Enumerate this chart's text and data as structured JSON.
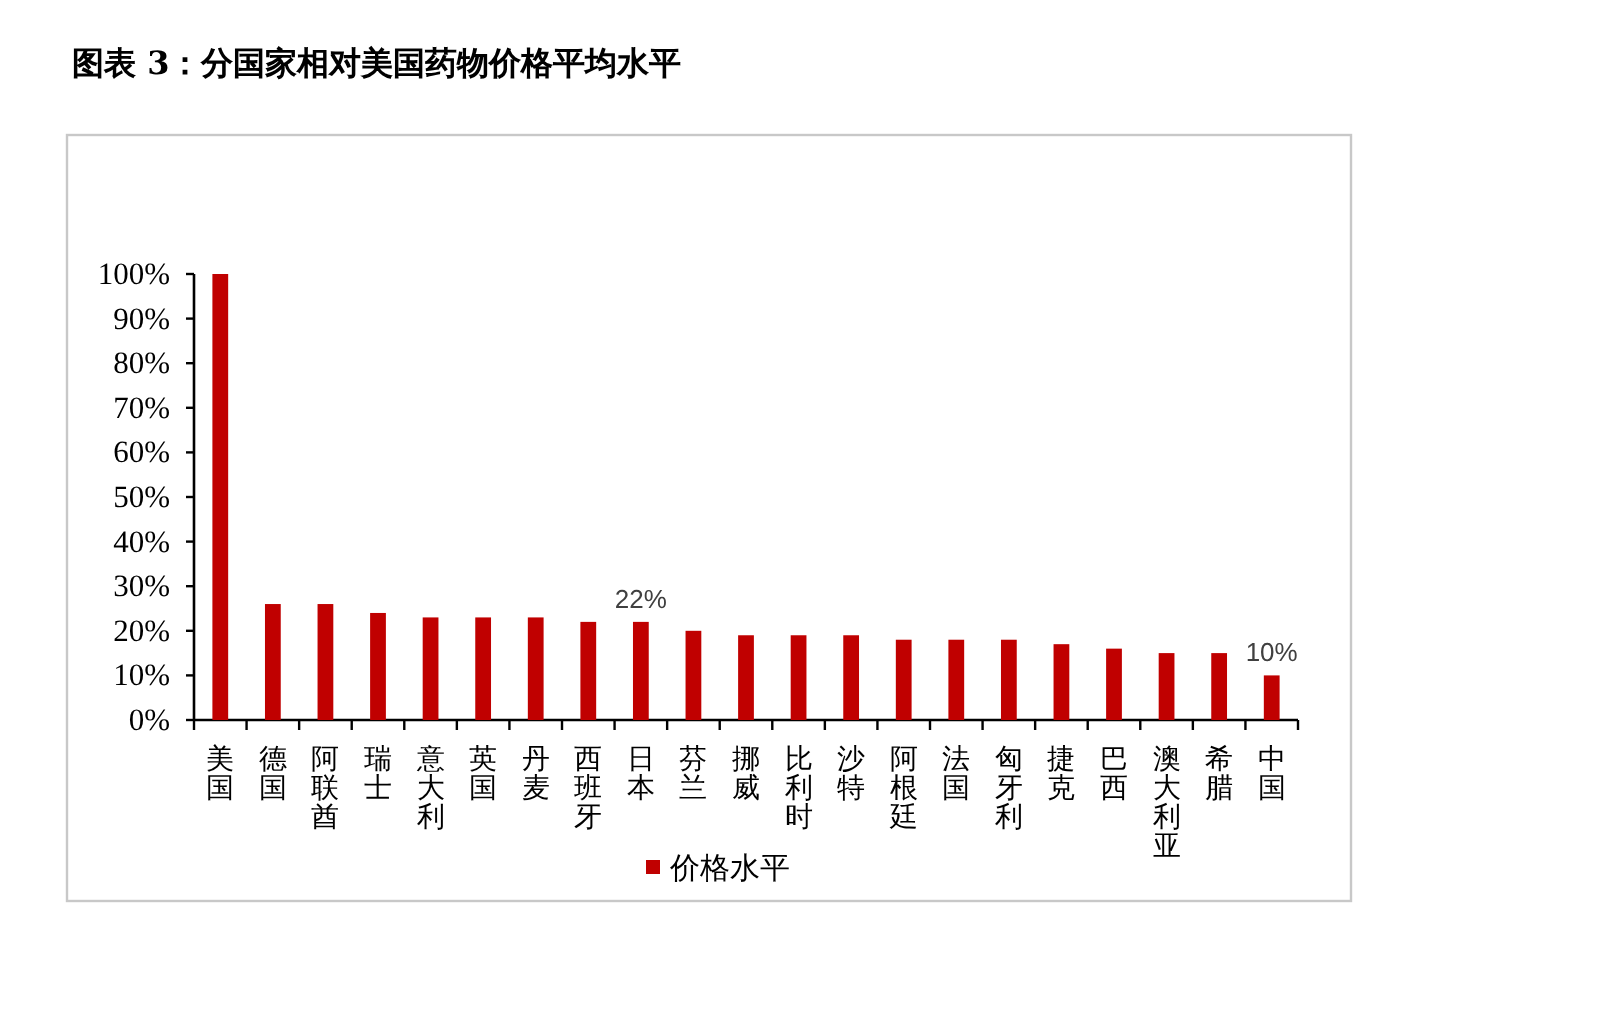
{
  "chart_data": {
    "type": "bar",
    "title": "图表 3：分国家相对美国药物价格平均水平",
    "categories": [
      "美国",
      "德国",
      "阿联酋",
      "瑞士",
      "意大利",
      "英国",
      "丹麦",
      "西班牙",
      "日本",
      "芬兰",
      "挪威",
      "比利时",
      "沙特",
      "阿根廷",
      "法国",
      "匈牙利",
      "捷克",
      "巴西",
      "澳大利亚",
      "希腊",
      "中国"
    ],
    "series": [
      {
        "name": "价格水平",
        "color": "#c00000",
        "values": [
          100,
          26,
          26,
          24,
          23,
          23,
          23,
          22,
          22,
          20,
          19,
          19,
          19,
          18,
          18,
          18,
          17,
          16,
          15,
          15,
          10
        ],
        "value_labels": [
          null,
          null,
          null,
          null,
          null,
          null,
          null,
          null,
          "22%",
          null,
          null,
          null,
          null,
          null,
          null,
          null,
          null,
          null,
          null,
          null,
          "10%"
        ]
      }
    ],
    "ylim": [
      0,
      100
    ],
    "yticks": [
      {
        "value": 0,
        "label": "0%"
      },
      {
        "value": 10,
        "label": "10%"
      },
      {
        "value": 20,
        "label": "20%"
      },
      {
        "value": 30,
        "label": "30%"
      },
      {
        "value": 40,
        "label": "40%"
      },
      {
        "value": 50,
        "label": "50%"
      },
      {
        "value": 60,
        "label": "60%"
      },
      {
        "value": 70,
        "label": "70%"
      },
      {
        "value": 80,
        "label": "80%"
      },
      {
        "value": 90,
        "label": "90%"
      },
      {
        "value": 100,
        "label": "100%"
      }
    ],
    "legend": "bottom"
  }
}
